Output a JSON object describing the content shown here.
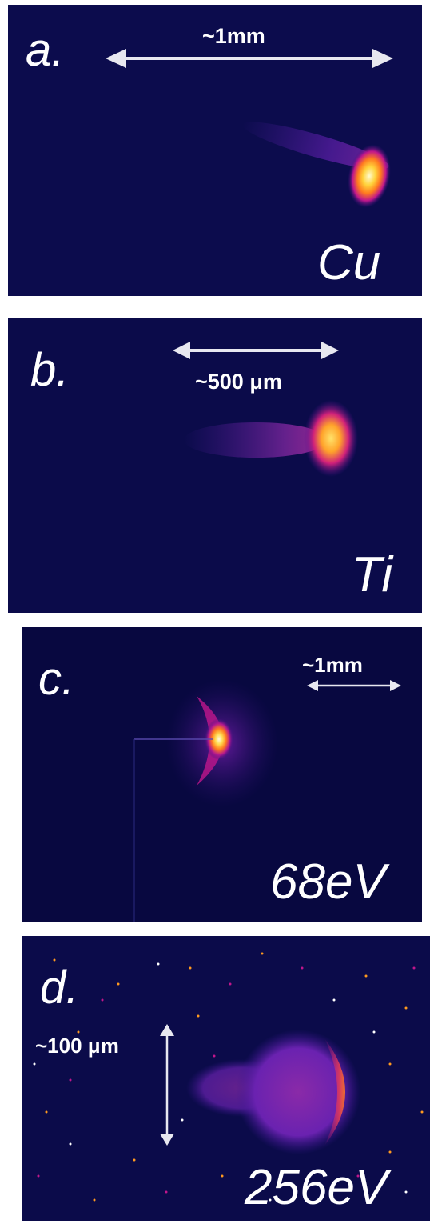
{
  "panels": [
    {
      "letter": "a.",
      "scale_text": "~1mm",
      "label": "Cu"
    },
    {
      "letter": "b.",
      "scale_text": "~500 μm",
      "label": "Ti"
    },
    {
      "letter": "c.",
      "scale_text": "~1mm",
      "label": "68eV"
    },
    {
      "letter": "d.",
      "scale_text": "~100 μm",
      "label": "256eV"
    }
  ],
  "colors": {
    "background": "#0b0b4a",
    "glow_hot": "#fffbd0",
    "glow_warm": "#ff9a1f",
    "glow_mid": "#b3178f",
    "glow_cool": "#5a1fb0",
    "arrow": "#e8e8f0"
  }
}
